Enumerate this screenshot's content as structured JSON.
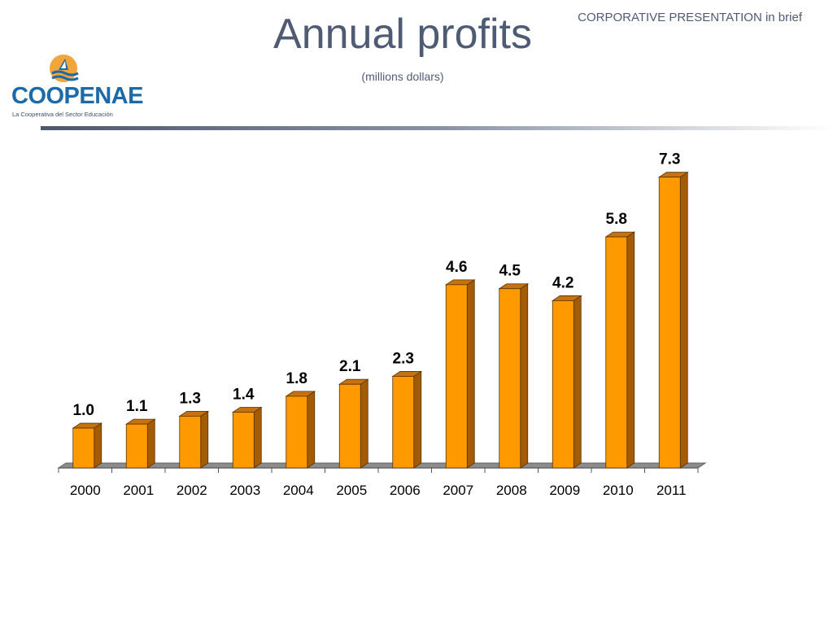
{
  "header": {
    "tag": "CORPORATIVE PRESENTATION in brief",
    "title": "Annual profits",
    "subtitle": "(millions dollars)"
  },
  "logo": {
    "name": "COOPENAE",
    "tagline": "La Cooperativa del Sector Educación"
  },
  "colors": {
    "bar_front": "#ff9900",
    "bar_side": "#a35c05",
    "bar_top": "#c57312",
    "floor": "#8c8c8c",
    "title_text": "#4f5b73",
    "brand_blue": "#1c6ba8",
    "brand_orange": "#f2a53a"
  },
  "chart_data": {
    "type": "bar",
    "categories": [
      "2000",
      "2001",
      "2002",
      "2003",
      "2004",
      "2005",
      "2006",
      "2007",
      "2008",
      "2009",
      "2010",
      "2011"
    ],
    "values": [
      1.0,
      1.1,
      1.3,
      1.4,
      1.8,
      2.1,
      2.3,
      4.6,
      4.5,
      4.2,
      5.8,
      7.3
    ],
    "value_labels": [
      "1.0",
      "1.1",
      "1.3",
      "1.4",
      "1.8",
      "2.1",
      "2.3",
      "4.6",
      "4.5",
      "4.2",
      "5.8",
      "7.3"
    ],
    "title": "Annual profits",
    "subtitle": "(millions dollars)",
    "xlabel": "",
    "ylabel": "",
    "ylim": [
      0,
      7.6
    ],
    "grid": false,
    "legend": "none",
    "style": "3d"
  }
}
